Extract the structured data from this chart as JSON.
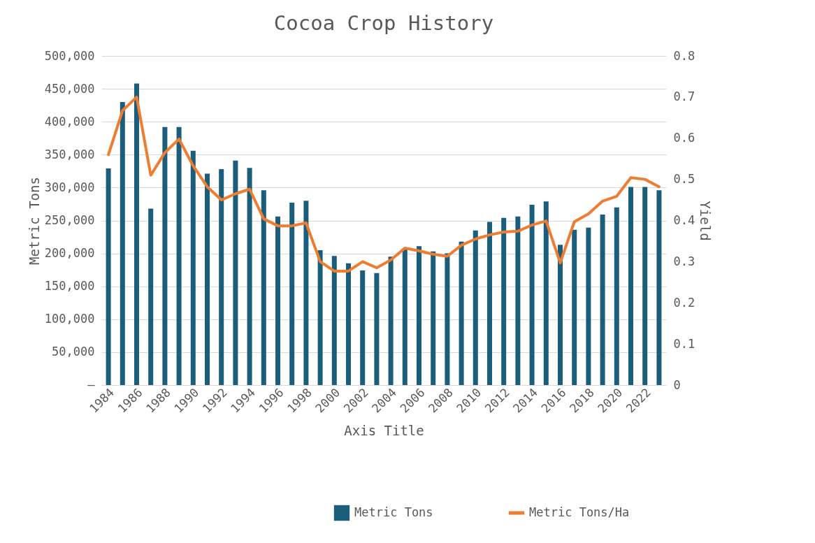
{
  "chart_data": {
    "type": "bar",
    "title": "Cocoa Crop History",
    "xlabel": "Axis Title",
    "ylabel": "Metric Tons",
    "y2label": "Yield",
    "categories": [
      "1984",
      null,
      "1986",
      null,
      "1988",
      null,
      "1990",
      null,
      "1992",
      null,
      "1994",
      null,
      "1996",
      null,
      "1998",
      null,
      "2000",
      null,
      "2002",
      null,
      "2004",
      null,
      "2006",
      null,
      "2008",
      null,
      "2010",
      null,
      "2012",
      null,
      "2014",
      null,
      "2016",
      null,
      "2018",
      null,
      "2020",
      null,
      "2022",
      null
    ],
    "series": [
      {
        "name": "Metric Tons",
        "color": "#1b5e7b",
        "values": [
          329000,
          430000,
          458000,
          268000,
          392000,
          392000,
          356000,
          321000,
          328000,
          341000,
          330000,
          296000,
          256000,
          277000,
          280000,
          205000,
          196000,
          185000,
          174000,
          170000,
          195000,
          208000,
          211000,
          203000,
          200000,
          218000,
          235000,
          248000,
          254000,
          256000,
          274000,
          279000,
          213000,
          236000,
          239000,
          259000,
          270000,
          301000,
          301000,
          296000
        ]
      },
      {
        "name": "Metric Tons/Ha",
        "type": "line",
        "axis": "y2",
        "color": "#ed7d31",
        "values": [
          0.56,
          0.667,
          0.7,
          0.51,
          0.565,
          0.598,
          0.533,
          0.482,
          0.45,
          0.465,
          0.476,
          0.404,
          0.387,
          0.387,
          0.394,
          0.3,
          0.277,
          0.277,
          0.3,
          0.285,
          0.304,
          0.333,
          0.326,
          0.318,
          0.313,
          0.34,
          0.355,
          0.365,
          0.372,
          0.374,
          0.389,
          0.399,
          0.297,
          0.397,
          0.416,
          0.447,
          0.459,
          0.504,
          0.5,
          0.482
        ]
      }
    ],
    "ylim": [
      0,
      500000
    ],
    "yticks": [
      {
        "value": 0,
        "label": "–"
      },
      {
        "value": 50000,
        "label": "50,000"
      },
      {
        "value": 100000,
        "label": "100,000"
      },
      {
        "value": 150000,
        "label": "150,000"
      },
      {
        "value": 200000,
        "label": "200,000"
      },
      {
        "value": 250000,
        "label": "250,000"
      },
      {
        "value": 300000,
        "label": "300,000"
      },
      {
        "value": 350000,
        "label": "350,000"
      },
      {
        "value": 400000,
        "label": "400,000"
      },
      {
        "value": 450000,
        "label": "450,000"
      },
      {
        "value": 500000,
        "label": "500,000"
      }
    ],
    "y2lim": [
      0,
      0.8
    ],
    "y2ticks": [
      0,
      0.1,
      0.2,
      0.3,
      0.4,
      0.5,
      0.6,
      0.7,
      0.8
    ],
    "grid": "y",
    "legend": "bottom",
    "marker": "none",
    "line_style": "solid"
  }
}
